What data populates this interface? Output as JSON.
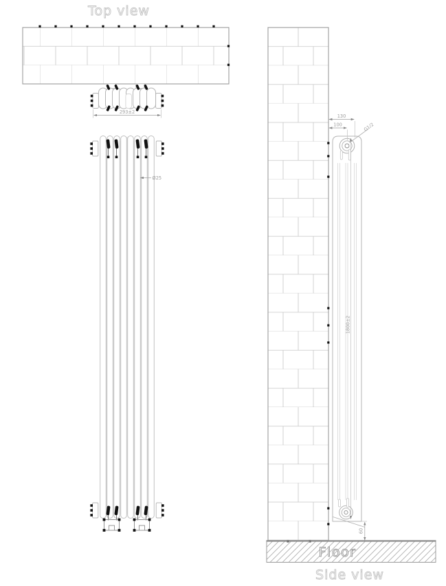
{
  "drawing": {
    "type": "radiator installation technical drawing",
    "views": {
      "top": {
        "title": "Top view"
      },
      "side": {
        "title": "Side view"
      },
      "floor_label": "Floor"
    },
    "dimensions": {
      "overall_width": "293±2",
      "tube_diameter": "Ø25",
      "depth": "130",
      "wall_to_center": "100",
      "connection_thread": "G1/2",
      "overall_height": "1800±2",
      "floor_clearance": "60"
    },
    "colors": {
      "background": "#ffffff",
      "line": "#b4b4b4",
      "lineLight": "#d6d6d6",
      "lineDark": "#8f8f8f",
      "brick": "#c6c6c6",
      "dimText": "#9e9e9e",
      "titleText": "#c2c2c2",
      "accent": "#111111",
      "fillLight": "#e9e9e9"
    }
  }
}
